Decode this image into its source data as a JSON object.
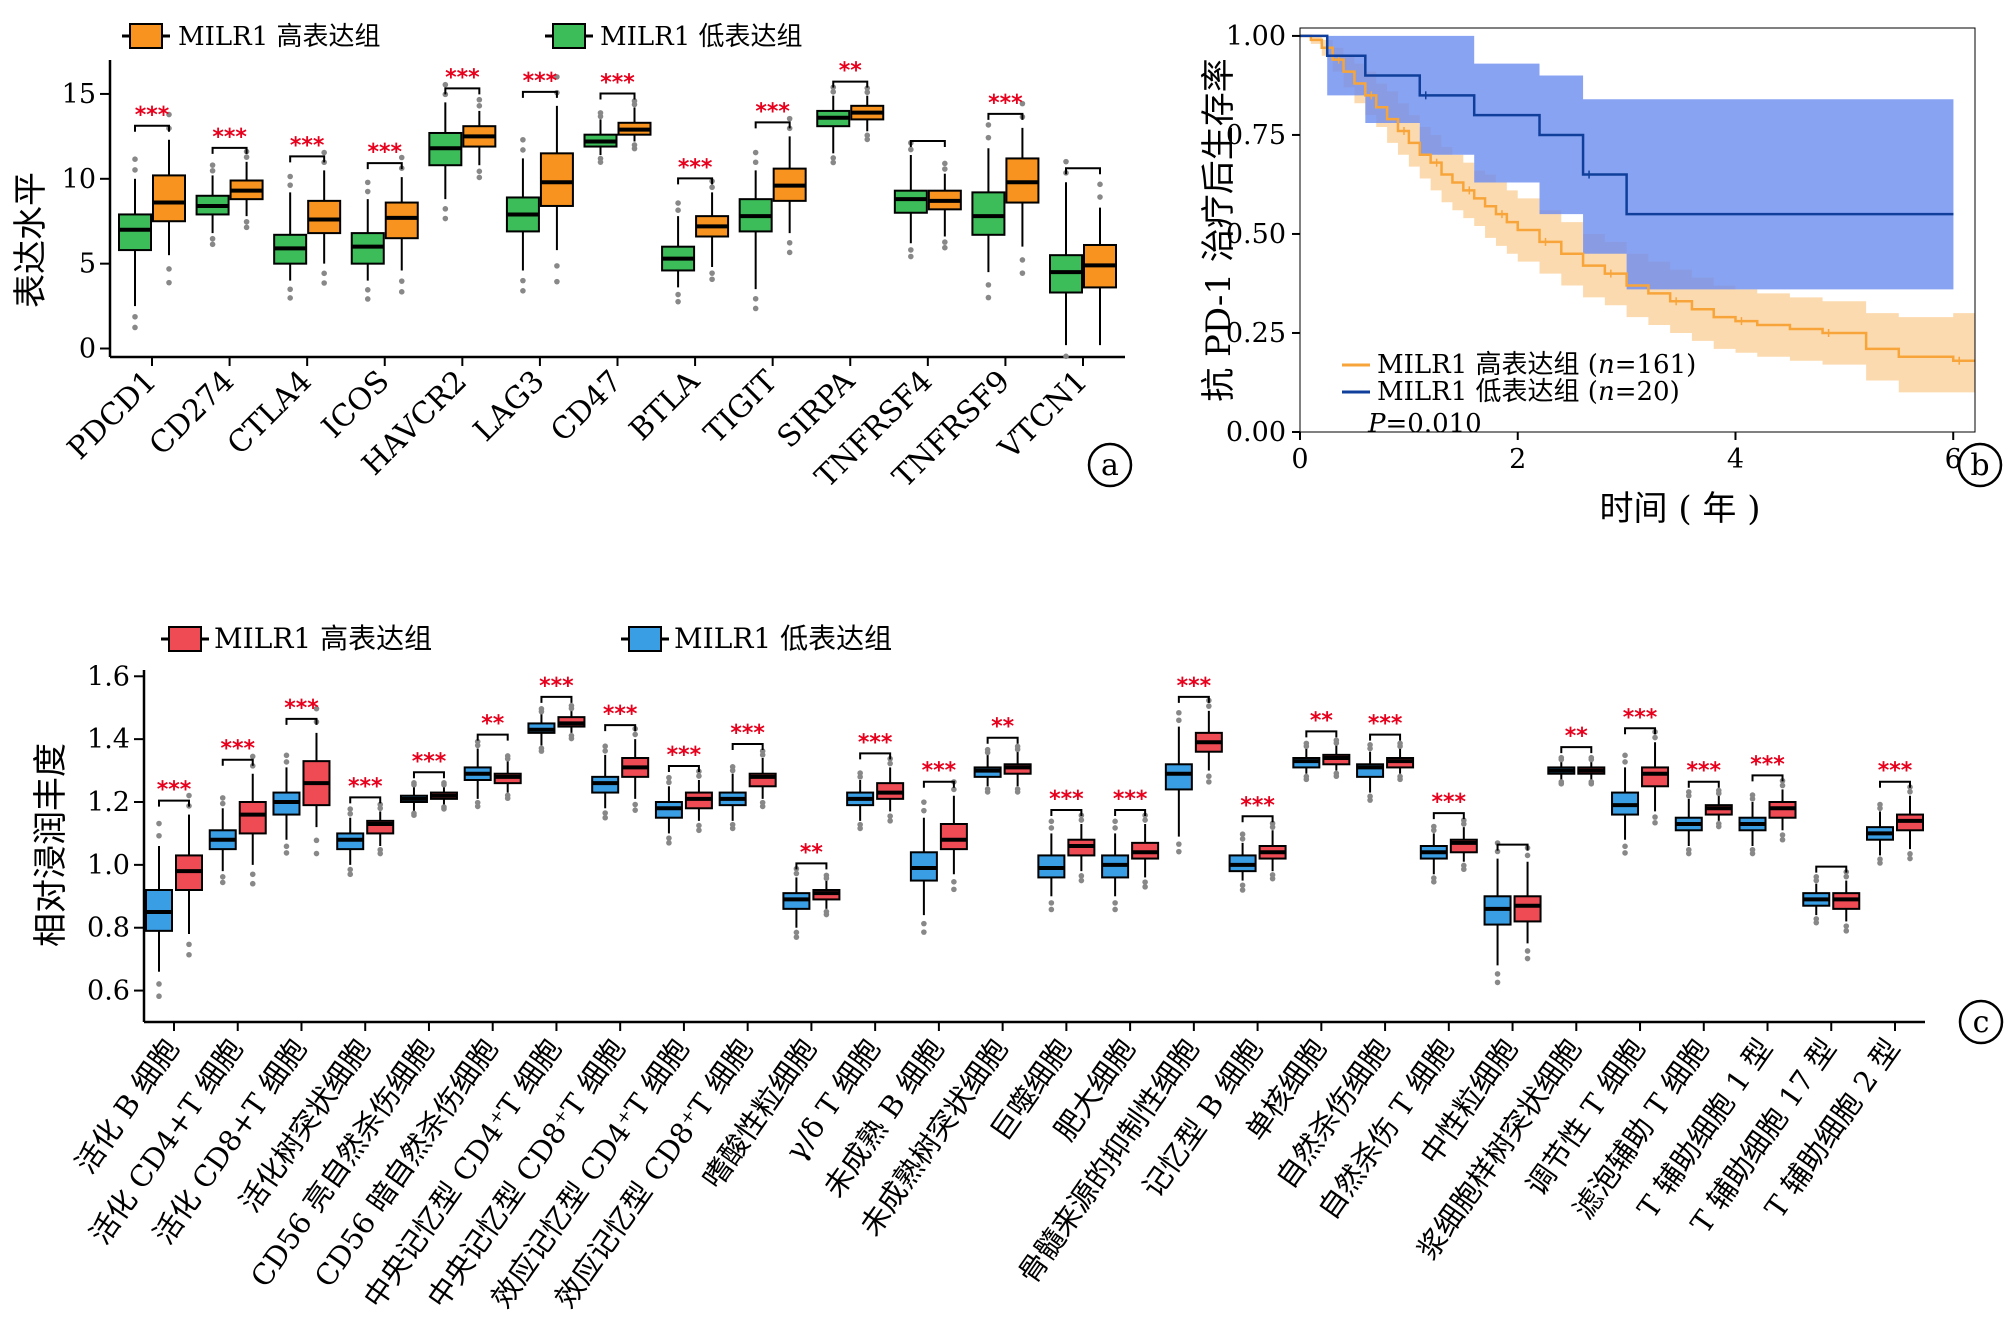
{
  "panel_letters": {
    "a": "a",
    "b": "b",
    "c": "c"
  },
  "colors": {
    "a_high": "#f7931e",
    "a_low": "#3dbd5a",
    "c_high": "#ef4b55",
    "c_low": "#3a9ee4",
    "km_high_line": "#f7a53a",
    "km_high_band": "#fbcd94",
    "km_low_line": "#0f3f9a",
    "km_low_band": "#6b8cf0",
    "star": "#e8001c"
  },
  "chart_data": [
    {
      "id": "a",
      "type": "box",
      "ylabel": "表达水平",
      "ylim": [
        -0.5,
        17
      ],
      "yticks": [
        0,
        5,
        10,
        15
      ],
      "legend": [
        "MILR1 高表达组",
        "MILR1 低表达组"
      ],
      "categories": [
        "PDCD1",
        "CD274",
        "CTLA4",
        "ICOS",
        "HAVCR2",
        "LAG3",
        "CD47",
        "BTLA",
        "TIGIT",
        "SIRPA",
        "TNFRSF4",
        "TNFRSF9",
        "VTCN1"
      ],
      "significance": [
        "***",
        "***",
        "***",
        "***",
        "***",
        "***",
        "***",
        "***",
        "***",
        "**",
        "",
        "***",
        ""
      ],
      "series": [
        {
          "name": "MILR1 低表达组",
          "boxes": [
            [
              2.5,
              5.8,
              7.0,
              7.9,
              10.0
            ],
            [
              6.8,
              7.9,
              8.4,
              9.0,
              10.2
            ],
            [
              4.0,
              5.0,
              5.9,
              6.7,
              9.2
            ],
            [
              4.0,
              5.0,
              6.0,
              6.8,
              8.8
            ],
            [
              8.8,
              10.8,
              11.8,
              12.7,
              14.5
            ],
            [
              4.6,
              6.9,
              7.9,
              8.9,
              11.2
            ],
            [
              11.4,
              11.9,
              12.2,
              12.6,
              13.5
            ],
            [
              3.6,
              4.6,
              5.3,
              6.0,
              7.8
            ],
            [
              3.5,
              6.9,
              7.8,
              8.8,
              10.5
            ],
            [
              11.5,
              13.1,
              13.6,
              14.0,
              14.9
            ],
            [
              6.2,
              8.0,
              8.8,
              9.3,
              11.4
            ],
            [
              4.5,
              6.7,
              7.8,
              9.2,
              11.8
            ],
            [
              0.2,
              3.3,
              4.5,
              5.5,
              9.8
            ]
          ]
        },
        {
          "name": "MILR1 高表达组",
          "boxes": [
            [
              5.5,
              7.5,
              8.6,
              10.2,
              12.3
            ],
            [
              7.8,
              8.8,
              9.3,
              9.9,
              11.0
            ],
            [
              5.0,
              6.8,
              7.6,
              8.7,
              10.5
            ],
            [
              4.6,
              6.5,
              7.7,
              8.6,
              10.1
            ],
            [
              10.8,
              11.9,
              12.5,
              13.1,
              14.0
            ],
            [
              5.8,
              8.4,
              9.8,
              11.5,
              14.3
            ],
            [
              12.2,
              12.6,
              12.9,
              13.3,
              14.2
            ],
            [
              4.8,
              6.6,
              7.2,
              7.8,
              9.2
            ],
            [
              6.8,
              8.7,
              9.6,
              10.6,
              12.5
            ],
            [
              12.8,
              13.5,
              13.9,
              14.3,
              14.9
            ],
            [
              6.6,
              8.2,
              8.7,
              9.3,
              10.3
            ],
            [
              6.0,
              8.6,
              9.8,
              11.2,
              13.0
            ],
            [
              0.2,
              3.6,
              4.9,
              6.1,
              8.3
            ]
          ]
        }
      ]
    },
    {
      "id": "b",
      "type": "line",
      "ylabel": "抗 PD-1 治疗后生存率",
      "xlabel": "时间 ( 年 )",
      "xlim": [
        0,
        6.2
      ],
      "ylim": [
        0,
        1.02
      ],
      "xticks": [
        0,
        2,
        4,
        6
      ],
      "yticks": [
        "0.00",
        "0.25",
        "0.50",
        "0.75",
        "1.00"
      ],
      "legend": [
        {
          "name": "MILR1 高表达组 (",
          "n_label": "n",
          "count": "=161)"
        },
        {
          "name": "MILR1 低表达组 (",
          "n_label": "n",
          "count": "=20)"
        }
      ],
      "pvalue_label": "P",
      "pvalue": "=0.010",
      "series": [
        {
          "name": "MILR1 高表达组",
          "x": [
            0,
            0.1,
            0.2,
            0.3,
            0.4,
            0.5,
            0.6,
            0.7,
            0.8,
            0.9,
            1.0,
            1.1,
            1.2,
            1.3,
            1.4,
            1.5,
            1.6,
            1.7,
            1.8,
            1.9,
            2.0,
            2.2,
            2.4,
            2.6,
            2.8,
            3.0,
            3.2,
            3.4,
            3.6,
            3.8,
            4.0,
            4.2,
            4.5,
            4.8,
            5.2,
            5.5,
            6.0
          ],
          "y": [
            1.0,
            0.99,
            0.97,
            0.94,
            0.91,
            0.88,
            0.85,
            0.82,
            0.79,
            0.76,
            0.73,
            0.7,
            0.68,
            0.65,
            0.63,
            0.61,
            0.59,
            0.57,
            0.55,
            0.53,
            0.51,
            0.48,
            0.45,
            0.42,
            0.4,
            0.37,
            0.35,
            0.33,
            0.31,
            0.29,
            0.28,
            0.27,
            0.26,
            0.25,
            0.21,
            0.19,
            0.18
          ],
          "lower": [
            1.0,
            0.98,
            0.95,
            0.91,
            0.87,
            0.83,
            0.8,
            0.77,
            0.73,
            0.7,
            0.67,
            0.64,
            0.61,
            0.58,
            0.56,
            0.54,
            0.52,
            0.49,
            0.47,
            0.45,
            0.43,
            0.4,
            0.37,
            0.34,
            0.32,
            0.29,
            0.27,
            0.25,
            0.23,
            0.21,
            0.2,
            0.19,
            0.18,
            0.17,
            0.13,
            0.1,
            0.1
          ],
          "upper": [
            1.0,
            1.0,
            0.99,
            0.97,
            0.95,
            0.93,
            0.91,
            0.88,
            0.86,
            0.83,
            0.8,
            0.77,
            0.75,
            0.72,
            0.7,
            0.68,
            0.66,
            0.65,
            0.63,
            0.61,
            0.59,
            0.56,
            0.53,
            0.5,
            0.48,
            0.45,
            0.43,
            0.41,
            0.39,
            0.37,
            0.36,
            0.35,
            0.34,
            0.33,
            0.3,
            0.29,
            0.3
          ]
        },
        {
          "name": "MILR1 低表达组",
          "x": [
            0,
            0.25,
            0.6,
            1.1,
            1.6,
            2.2,
            2.6,
            3.0,
            5.8
          ],
          "y": [
            1.0,
            0.95,
            0.9,
            0.85,
            0.8,
            0.75,
            0.65,
            0.55,
            0.55
          ],
          "lower": [
            1.0,
            0.85,
            0.78,
            0.7,
            0.63,
            0.55,
            0.45,
            0.36,
            0.36
          ],
          "upper": [
            1.0,
            1.0,
            1.0,
            1.0,
            0.93,
            0.9,
            0.84,
            0.84,
            0.84
          ]
        }
      ]
    },
    {
      "id": "c",
      "type": "box",
      "ylabel": "相对浸润丰度",
      "ylim": [
        0.5,
        1.62
      ],
      "yticks": [
        "0.6",
        "0.8",
        "1.0",
        "1.2",
        "1.4",
        "1.6"
      ],
      "legend": [
        "MILR1 高表达组",
        "MILR1 低表达组"
      ],
      "categories": [
        "活化 B 细胞",
        "活化 CD4+T 细胞",
        "活化 CD8+T 细胞",
        "活化树突状细胞",
        "CD56 亮自然杀伤细胞",
        "CD56 暗自然杀伤细胞",
        "中央记忆型 CD4⁺T 细胞",
        "中央记忆型 CD8⁺T 细胞",
        "效应记忆型 CD4⁺T 细胞",
        "效应记忆型 CD8⁺T 细胞",
        "嗜酸性粒细胞",
        "γ/δ T 细胞",
        "未成熟 B 细胞",
        "未成熟树突状细胞",
        "巨噬细胞",
        "肥大细胞",
        "骨髓来源的抑制性细胞",
        "记忆型 B 细胞",
        "单核细胞",
        "自然杀伤细胞",
        "自然杀伤 T 细胞",
        "中性粒细胞",
        "浆细胞样树突状细胞",
        "调节性 T 细胞",
        "滤泡辅助 T 细胞",
        "T 辅助细胞 1 型",
        "T 辅助细胞 17 型",
        "T 辅助细胞 2 型"
      ],
      "significance": [
        "***",
        "***",
        "***",
        "***",
        "***",
        "**",
        "***",
        "***",
        "***",
        "***",
        "**",
        "***",
        "***",
        "**",
        "***",
        "***",
        "***",
        "***",
        "**",
        "***",
        "***",
        "",
        "**",
        "***",
        "***",
        "***",
        "",
        "***"
      ],
      "series": [
        {
          "name": "MILR1 低表达组",
          "boxes": [
            [
              0.66,
              0.79,
              0.85,
              0.92,
              1.06
            ],
            [
              0.98,
              1.05,
              1.08,
              1.11,
              1.18
            ],
            [
              1.08,
              1.16,
              1.2,
              1.23,
              1.31
            ],
            [
              1.0,
              1.05,
              1.08,
              1.1,
              1.15
            ],
            [
              1.17,
              1.2,
              1.21,
              1.22,
              1.25
            ],
            [
              1.21,
              1.27,
              1.29,
              1.31,
              1.37
            ],
            [
              1.38,
              1.42,
              1.43,
              1.45,
              1.48
            ],
            [
              1.18,
              1.23,
              1.26,
              1.28,
              1.35
            ],
            [
              1.1,
              1.15,
              1.18,
              1.2,
              1.25
            ],
            [
              1.14,
              1.19,
              1.21,
              1.23,
              1.29
            ],
            [
              0.8,
              0.86,
              0.89,
              0.91,
              0.96
            ],
            [
              1.14,
              1.19,
              1.21,
              1.23,
              1.27
            ],
            [
              0.84,
              0.95,
              0.99,
              1.04,
              1.15
            ],
            [
              1.25,
              1.28,
              1.3,
              1.31,
              1.35
            ],
            [
              0.9,
              0.96,
              0.99,
              1.03,
              1.1
            ],
            [
              0.9,
              0.96,
              1.0,
              1.03,
              1.1
            ],
            [
              1.09,
              1.24,
              1.29,
              1.32,
              1.44
            ],
            [
              0.95,
              0.98,
              1.0,
              1.03,
              1.07
            ],
            [
              1.29,
              1.31,
              1.33,
              1.34,
              1.37
            ],
            [
              1.23,
              1.28,
              1.31,
              1.32,
              1.36
            ],
            [
              0.97,
              1.02,
              1.04,
              1.06,
              1.1
            ],
            [
              0.68,
              0.81,
              0.86,
              0.9,
              1.02
            ],
            [
              1.27,
              1.29,
              1.3,
              1.31,
              1.33
            ],
            [
              1.08,
              1.16,
              1.19,
              1.23,
              1.31
            ],
            [
              1.06,
              1.11,
              1.13,
              1.15,
              1.21
            ],
            [
              1.06,
              1.11,
              1.13,
              1.15,
              1.2
            ],
            [
              0.84,
              0.87,
              0.89,
              0.91,
              0.94
            ],
            [
              1.03,
              1.08,
              1.1,
              1.12,
              1.17
            ]
          ]
        },
        {
          "name": "MILR1 高表达组",
          "boxes": [
            [
              0.78,
              0.92,
              0.98,
              1.03,
              1.16
            ],
            [
              1.0,
              1.1,
              1.16,
              1.2,
              1.29
            ],
            [
              1.12,
              1.19,
              1.26,
              1.33,
              1.42
            ],
            [
              1.06,
              1.1,
              1.13,
              1.14,
              1.17
            ],
            [
              1.19,
              1.21,
              1.22,
              1.23,
              1.25
            ],
            [
              1.23,
              1.26,
              1.28,
              1.29,
              1.33
            ],
            [
              1.42,
              1.44,
              1.45,
              1.47,
              1.49
            ],
            [
              1.21,
              1.28,
              1.31,
              1.34,
              1.4
            ],
            [
              1.14,
              1.18,
              1.21,
              1.23,
              1.27
            ],
            [
              1.21,
              1.25,
              1.28,
              1.29,
              1.34
            ],
            [
              0.86,
              0.89,
              0.91,
              0.92,
              0.95
            ],
            [
              1.17,
              1.21,
              1.23,
              1.26,
              1.31
            ],
            [
              0.97,
              1.05,
              1.08,
              1.13,
              1.22
            ],
            [
              1.25,
              1.29,
              1.31,
              1.32,
              1.36
            ],
            [
              0.98,
              1.03,
              1.06,
              1.08,
              1.13
            ],
            [
              0.96,
              1.02,
              1.04,
              1.07,
              1.13
            ],
            [
              1.3,
              1.36,
              1.39,
              1.42,
              1.49
            ],
            [
              0.98,
              1.02,
              1.04,
              1.06,
              1.11
            ],
            [
              1.3,
              1.32,
              1.34,
              1.35,
              1.38
            ],
            [
              1.29,
              1.31,
              1.33,
              1.34,
              1.37
            ],
            [
              1.01,
              1.04,
              1.07,
              1.08,
              1.12
            ],
            [
              0.75,
              0.82,
              0.87,
              0.9,
              1.01
            ],
            [
              1.27,
              1.29,
              1.3,
              1.31,
              1.33
            ],
            [
              1.17,
              1.25,
              1.29,
              1.31,
              1.39
            ],
            [
              1.14,
              1.16,
              1.18,
              1.19,
              1.22
            ],
            [
              1.11,
              1.15,
              1.18,
              1.2,
              1.24
            ],
            [
              0.82,
              0.86,
              0.89,
              0.91,
              0.95
            ],
            [
              1.05,
              1.11,
              1.14,
              1.16,
              1.22
            ]
          ]
        }
      ]
    }
  ]
}
